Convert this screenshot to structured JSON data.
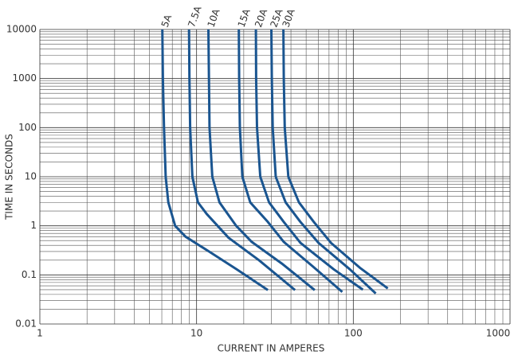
{
  "chart_data": {
    "type": "line",
    "x_label": "CURRENT IN AMPERES",
    "y_label": "TIME IN SECONDS",
    "log_x": true,
    "log_y": true,
    "grid": true,
    "xlim": [
      1,
      1000
    ],
    "ylim": [
      0.01,
      10000
    ],
    "xticks": [
      1,
      10,
      100,
      1000
    ],
    "yticks": [
      0.01,
      0.1,
      1,
      10,
      100,
      1000,
      10000
    ],
    "xminorticks": [
      2,
      3,
      4,
      5,
      6,
      7,
      8,
      9,
      20,
      30,
      40,
      50,
      60,
      70,
      80,
      90,
      200,
      300,
      400,
      500,
      600,
      700,
      800,
      900
    ],
    "yminorticks": [
      0.02,
      0.03,
      0.04,
      0.05,
      0.06,
      0.07,
      0.08,
      0.09,
      0.2,
      0.3,
      0.4,
      0.5,
      0.6,
      0.7,
      0.8,
      0.9,
      2,
      3,
      4,
      5,
      6,
      7,
      8,
      9,
      20,
      30,
      40,
      50,
      60,
      70,
      80,
      90,
      200,
      300,
      400,
      500,
      600,
      700,
      800,
      900,
      2000,
      3000,
      4000,
      5000,
      6000,
      7000,
      8000,
      9000
    ],
    "series": [
      {
        "name": "5A",
        "color": "#1a5590",
        "x": [
          6.05,
          6.1,
          6.2,
          6.35,
          6.6,
          7.3,
          8.5,
          12,
          18,
          28.5
        ],
        "values": [
          10000,
          1000,
          100,
          10,
          3,
          1,
          0.6,
          0.3,
          0.13,
          0.049
        ]
      },
      {
        "name": "7.5A",
        "color": "#1a5590",
        "x": [
          8.95,
          9.0,
          9.1,
          9.4,
          10.2,
          11.6,
          16,
          25,
          42.5
        ],
        "values": [
          10000,
          1000,
          100,
          10,
          3,
          1.75,
          0.57,
          0.2,
          0.049
        ]
      },
      {
        "name": "10A",
        "color": "#1a5590",
        "x": [
          11.9,
          12.0,
          12.1,
          12.6,
          14,
          17.9,
          22.5,
          35,
          56.7
        ],
        "values": [
          10000,
          1000,
          100,
          10,
          3,
          1,
          0.47,
          0.17,
          0.049
        ]
      },
      {
        "name": "15A",
        "color": "#1a5590",
        "x": [
          18.6,
          18.7,
          18.9,
          19.6,
          22,
          28.5,
          36,
          55,
          85
        ],
        "values": [
          10000,
          1000,
          100,
          10,
          3,
          1.2,
          0.47,
          0.15,
          0.045
        ]
      },
      {
        "name": "20A",
        "color": "#1a5590",
        "x": [
          23.9,
          24,
          24.3,
          25.5,
          29,
          36,
          46,
          75,
          115
        ],
        "values": [
          10000,
          1000,
          100,
          10,
          3,
          1.2,
          0.45,
          0.13,
          0.05
        ]
      },
      {
        "name": "25A",
        "color": "#1a5590",
        "x": [
          30,
          30.2,
          30.6,
          32,
          37,
          46,
          60,
          95,
          139
        ],
        "values": [
          10000,
          1000,
          100,
          10,
          3,
          1.2,
          0.45,
          0.13,
          0.042
        ]
      },
      {
        "name": "30A",
        "color": "#1a5590",
        "x": [
          35.8,
          36,
          36.5,
          38.5,
          45,
          56,
          72,
          110,
          166
        ],
        "values": [
          10000,
          1000,
          100,
          10,
          3,
          1.2,
          0.45,
          0.14,
          0.053
        ]
      }
    ]
  }
}
